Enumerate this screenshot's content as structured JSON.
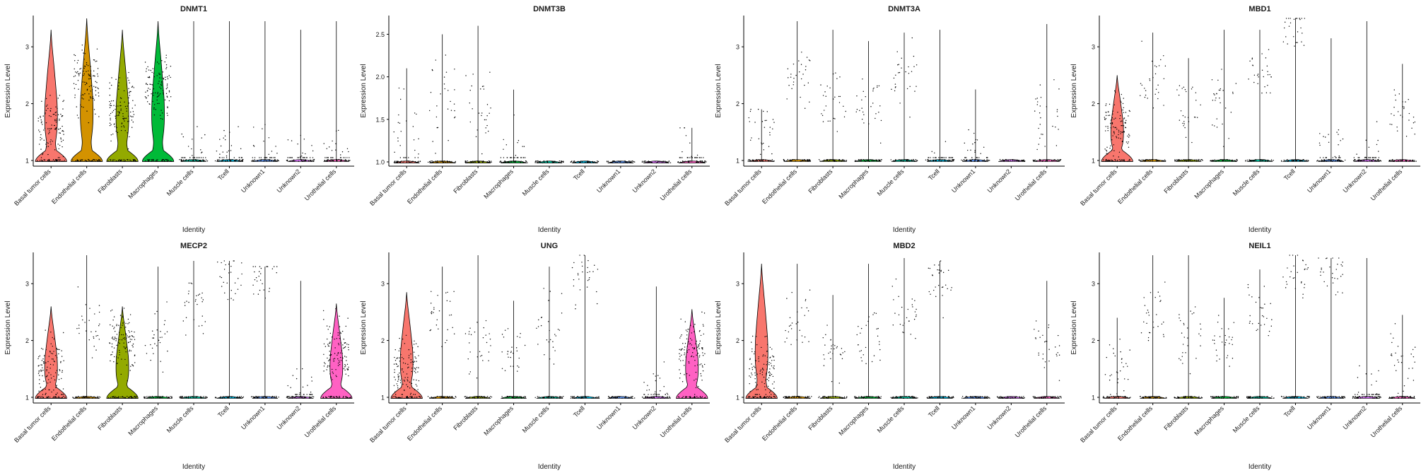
{
  "chart_data": {
    "type": "violin",
    "xlabel": "Identity",
    "ylabel": "Expression Level",
    "categories": [
      "Basal tumor cells",
      "Endothelial cells",
      "Fibroblasts",
      "Macrophages",
      "Muscle cells",
      "Tcell",
      "Unknown1",
      "Unknown2",
      "Urothelial cells"
    ],
    "colors": [
      "#F8766D",
      "#D39200",
      "#93AA00",
      "#00BA38",
      "#00C19F",
      "#00B9E3",
      "#619CFF",
      "#DB72FB",
      "#FF61C3"
    ],
    "point_color": "#000000",
    "panels": [
      {
        "title": "DNMT1",
        "ylim": [
          0.9,
          3.55
        ],
        "yticks": [
          1,
          2,
          3
        ],
        "max": [
          3.3,
          3.5,
          3.3,
          3.45,
          3.45,
          3.45,
          3.45,
          3.3,
          3.45
        ],
        "violin_top": [
          3.3,
          3.5,
          3.3,
          3.45,
          1.02,
          1.02,
          1.02,
          1.02,
          1.02
        ],
        "body_level": [
          1.6,
          2.4,
          1.9,
          2.3,
          1.0,
          1.0,
          1.0,
          1.0,
          1.0
        ]
      },
      {
        "title": "DNMT3B",
        "ylim": [
          0.95,
          2.72
        ],
        "yticks": [
          1.0,
          1.5,
          2.0,
          2.5
        ],
        "max": [
          2.1,
          2.5,
          2.6,
          1.85,
          1.0,
          1.0,
          1.0,
          1.0,
          1.4
        ],
        "violin_top": [
          1.02,
          1.02,
          1.02,
          1.02,
          1.02,
          1.02,
          1.02,
          1.02,
          1.02
        ],
        "body_level": [
          1.3,
          1.7,
          1.6,
          1.0,
          1.0,
          1.0,
          1.0,
          1.0,
          1.0
        ]
      },
      {
        "title": "DNMT3A",
        "ylim": [
          0.9,
          3.55
        ],
        "yticks": [
          1,
          2,
          3
        ],
        "max": [
          1.9,
          3.45,
          3.3,
          3.1,
          3.25,
          3.3,
          2.25,
          1.0,
          3.4
        ],
        "violin_top": [
          1.02,
          1.02,
          1.02,
          1.02,
          1.02,
          1.02,
          1.02,
          1.02,
          1.02
        ],
        "body_level": [
          1.5,
          2.5,
          2.0,
          2.0,
          2.5,
          1.0,
          1.0,
          1.0,
          1.8
        ]
      },
      {
        "title": "MBD1",
        "ylim": [
          0.9,
          3.55
        ],
        "yticks": [
          1,
          2,
          3
        ],
        "max": [
          2.5,
          3.25,
          2.8,
          3.3,
          3.3,
          3.5,
          3.15,
          3.45,
          2.7
        ],
        "violin_top": [
          2.5,
          1.02,
          1.02,
          1.02,
          1.02,
          1.02,
          1.02,
          1.02,
          1.02
        ],
        "body_level": [
          1.6,
          2.4,
          1.9,
          2.0,
          2.5,
          3.3,
          1.0,
          1.0,
          1.8
        ]
      },
      {
        "title": "MECP2",
        "ylim": [
          0.9,
          3.55
        ],
        "yticks": [
          1,
          2,
          3
        ],
        "max": [
          2.6,
          3.5,
          3.5,
          3.3,
          3.4,
          3.4,
          3.3,
          3.05,
          2.65
        ],
        "violin_top": [
          2.6,
          1.02,
          2.6,
          1.02,
          1.02,
          1.02,
          1.02,
          1.02,
          2.65
        ],
        "body_level": [
          1.5,
          2.3,
          2.0,
          2.0,
          2.6,
          3.2,
          3.1,
          1.0,
          1.8
        ]
      },
      {
        "title": "UNG",
        "ylim": [
          0.9,
          3.55
        ],
        "yticks": [
          1,
          2,
          3
        ],
        "max": [
          2.85,
          3.3,
          3.5,
          2.7,
          3.3,
          3.5,
          1.0,
          2.95,
          2.55
        ],
        "violin_top": [
          2.85,
          1.02,
          1.02,
          1.02,
          1.02,
          1.02,
          1.02,
          1.02,
          2.55
        ],
        "body_level": [
          1.5,
          2.4,
          1.9,
          1.8,
          2.3,
          3.1,
          1.0,
          1.0,
          1.8
        ]
      },
      {
        "title": "MBD2",
        "ylim": [
          0.9,
          3.55
        ],
        "yticks": [
          1,
          2,
          3
        ],
        "max": [
          3.35,
          3.35,
          2.8,
          3.35,
          3.45,
          3.4,
          1.0,
          1.0,
          3.05
        ],
        "violin_top": [
          3.35,
          1.02,
          1.02,
          1.02,
          1.02,
          1.02,
          1.02,
          1.02,
          1.02
        ],
        "body_level": [
          1.5,
          2.3,
          1.8,
          2.1,
          2.5,
          3.1,
          1.0,
          1.0,
          1.9
        ]
      },
      {
        "title": "NEIL1",
        "ylim": [
          0.9,
          3.55
        ],
        "yticks": [
          1,
          2,
          3
        ],
        "max": [
          2.4,
          3.5,
          3.5,
          2.75,
          3.25,
          3.5,
          3.45,
          3.45,
          2.45
        ],
        "violin_top": [
          1.02,
          1.02,
          1.02,
          1.02,
          1.02,
          1.02,
          1.02,
          1.02,
          1.02
        ],
        "body_level": [
          1.5,
          2.5,
          2.0,
          2.0,
          2.5,
          3.2,
          3.2,
          1.0,
          1.7
        ]
      }
    ]
  }
}
